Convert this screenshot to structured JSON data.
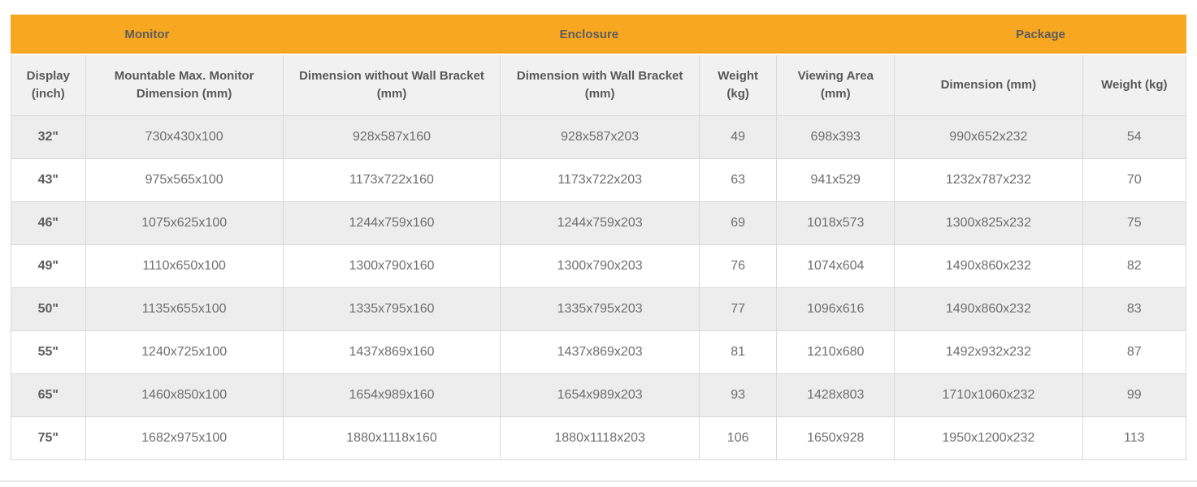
{
  "colors": {
    "header_orange": "#F8A721",
    "group_header_text": "#5D5D5D",
    "column_header_bg": "#F1F1F1",
    "column_header_text": "#595959",
    "row_alternate_bg": "#EDEDED",
    "row_bg": "#FFFFFF",
    "body_text": "#6E6E6E",
    "border": "#D9D9D9",
    "bottom_divider": "#E7E7EC"
  },
  "table": {
    "groups": [
      {
        "label": "Monitor",
        "colspan": 2
      },
      {
        "label": "Enclosure",
        "colspan": 4
      },
      {
        "label": "Package",
        "colspan": 2
      }
    ],
    "columns": [
      "Display (inch)",
      "Mountable Max. Monitor Dimension (mm)",
      "Dimension without Wall Bracket (mm)",
      "Dimension with Wall Bracket (mm)",
      "Weight (kg)",
      "Viewing Area (mm)",
      "Dimension (mm)",
      "Weight (kg)"
    ],
    "rows": [
      [
        "32\"",
        "730x430x100",
        "928x587x160",
        "928x587x203",
        "49",
        "698x393",
        "990x652x232",
        "54"
      ],
      [
        "43\"",
        "975x565x100",
        "1173x722x160",
        "1173x722x203",
        "63",
        "941x529",
        "1232x787x232",
        "70"
      ],
      [
        "46\"",
        "1075x625x100",
        "1244x759x160",
        "1244x759x203",
        "69",
        "1018x573",
        "1300x825x232",
        "75"
      ],
      [
        "49\"",
        "1110x650x100",
        "1300x790x160",
        "1300x790x203",
        "76",
        "1074x604",
        "1490x860x232",
        "82"
      ],
      [
        "50\"",
        "1135x655x100",
        "1335x795x160",
        "1335x795x203",
        "77",
        "1096x616",
        "1490x860x232",
        "83"
      ],
      [
        "55\"",
        "1240x725x100",
        "1437x869x160",
        "1437x869x203",
        "81",
        "1210x680",
        "1492x932x232",
        "87"
      ],
      [
        "65\"",
        "1460x850x100",
        "1654x989x160",
        "1654x989x203",
        "93",
        "1428x803",
        "1710x1060x232",
        "99"
      ],
      [
        "75\"",
        "1682x975x100",
        "1880x1118x160",
        "1880x1118x203",
        "106",
        "1650x928",
        "1950x1200x232",
        "113"
      ]
    ]
  }
}
